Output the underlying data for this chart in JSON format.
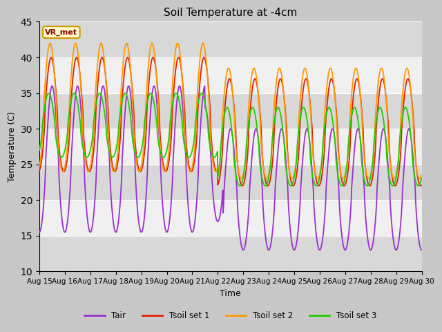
{
  "title": "Soil Temperature at -4cm",
  "xlabel": "Time",
  "ylabel": "Temperature (C)",
  "ylim": [
    10,
    45
  ],
  "xlim": [
    0,
    15
  ],
  "fig_bg_color": "#c8c8c8",
  "plot_bg_color": "#e8e8e8",
  "band_color_light": "#f0f0f0",
  "band_color_dark": "#d8d8d8",
  "grid_color": "#b0b0b0",
  "colors": {
    "Tair": "#9b30d0",
    "Tsoil_set1": "#dd2200",
    "Tsoil_set2": "#ff9900",
    "Tsoil_set3": "#22cc00"
  },
  "annotation_text": "VR_met",
  "annotation_bg": "#ffffcc",
  "annotation_border": "#cc9900",
  "annotation_text_color": "#880000",
  "x_tick_labels": [
    "Aug 15",
    "Aug 16",
    "Aug 17",
    "Aug 18",
    "Aug 19",
    "Aug 20",
    "Aug 21",
    "Aug 22",
    "Aug 23",
    "Aug 24",
    "Aug 25",
    "Aug 26",
    "Aug 27",
    "Aug 28",
    "Aug 29",
    "Aug 30"
  ],
  "legend_labels": [
    "Tair",
    "Tsoil set 1",
    "Tsoil set 2",
    "Tsoil set 3"
  ],
  "yticks": [
    10,
    15,
    20,
    25,
    30,
    35,
    40,
    45
  ]
}
